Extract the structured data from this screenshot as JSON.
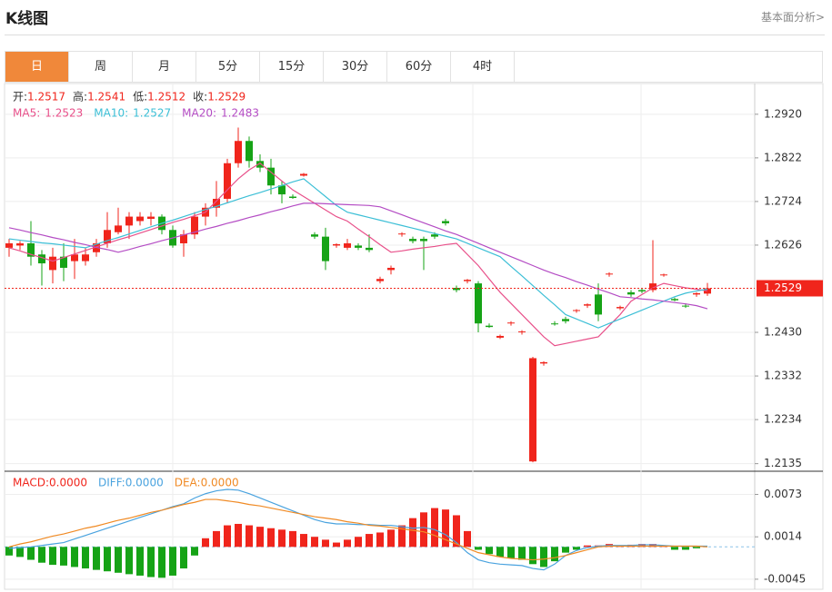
{
  "header": {
    "title": "K线图",
    "link": "基本面分析>"
  },
  "tabs": [
    "日",
    "周",
    "月",
    "5分",
    "15分",
    "30分",
    "60分",
    "4时"
  ],
  "active_tab": 0,
  "chart_data": [
    {
      "type": "candlestick",
      "up_color": "#f0251c",
      "down_color": "#16a316",
      "ohlc_labels": [
        "开:",
        "高:",
        "低:",
        "收:"
      ],
      "open": [
        1.262,
        1.2625,
        1.263,
        1.2605,
        1.257,
        1.26,
        1.259,
        1.259,
        1.261,
        1.263,
        1.2655,
        1.267,
        1.268,
        1.2685,
        1.269,
        1.266,
        1.263,
        1.265,
        1.269,
        1.271,
        1.273,
        1.281,
        1.286,
        1.2815,
        1.28,
        1.276,
        1.2735,
        1.2782,
        1.265,
        1.2645,
        1.2625,
        1.262,
        1.2625,
        1.262,
        1.2545,
        1.257,
        1.265,
        1.264,
        1.264,
        1.265,
        1.268,
        1.253,
        1.2545,
        1.254,
        1.2445,
        1.2418,
        1.245,
        1.243,
        1.214,
        1.236,
        1.245,
        1.246,
        1.2478,
        1.249,
        1.2515,
        1.256,
        1.2484,
        1.252,
        1.2525,
        1.2525,
        1.2558,
        1.2505,
        1.249,
        1.2515,
        1.2517
      ],
      "high": [
        1.264,
        1.2635,
        1.268,
        1.2615,
        1.262,
        1.263,
        1.264,
        1.262,
        1.264,
        1.27,
        1.271,
        1.27,
        1.27,
        1.27,
        1.2695,
        1.267,
        1.266,
        1.27,
        1.272,
        1.277,
        1.282,
        1.289,
        1.287,
        1.283,
        1.282,
        1.277,
        1.274,
        1.2788,
        1.2655,
        1.2665,
        1.263,
        1.264,
        1.263,
        1.265,
        1.2555,
        1.258,
        1.2655,
        1.2645,
        1.2645,
        1.2655,
        1.2685,
        1.2535,
        1.255,
        1.2545,
        1.245,
        1.2425,
        1.2455,
        1.2435,
        1.2375,
        1.2365,
        1.2455,
        1.2465,
        1.2482,
        1.2495,
        1.254,
        1.2565,
        1.249,
        1.2525,
        1.253,
        1.2637,
        1.2562,
        1.2508,
        1.2495,
        1.252,
        1.2541
      ],
      "low": [
        1.26,
        1.2615,
        1.258,
        1.2535,
        1.254,
        1.2545,
        1.255,
        1.258,
        1.26,
        1.262,
        1.265,
        1.264,
        1.267,
        1.267,
        1.265,
        1.262,
        1.26,
        1.264,
        1.267,
        1.269,
        1.272,
        1.28,
        1.28,
        1.279,
        1.274,
        1.272,
        1.273,
        1.278,
        1.264,
        1.257,
        1.262,
        1.2615,
        1.2615,
        1.261,
        1.254,
        1.256,
        1.2645,
        1.263,
        1.257,
        1.264,
        1.267,
        1.252,
        1.254,
        1.243,
        1.244,
        1.2415,
        1.2445,
        1.2425,
        1.2138,
        1.2355,
        1.2445,
        1.245,
        1.2474,
        1.2485,
        1.2455,
        1.2555,
        1.248,
        1.251,
        1.2518,
        1.252,
        1.2555,
        1.25,
        1.2485,
        1.251,
        1.2512
      ],
      "close": [
        1.263,
        1.263,
        1.26,
        1.2585,
        1.26,
        1.2575,
        1.2605,
        1.2605,
        1.263,
        1.266,
        1.267,
        1.269,
        1.269,
        1.269,
        1.266,
        1.2625,
        1.265,
        1.269,
        1.271,
        1.273,
        1.281,
        1.286,
        1.2815,
        1.28,
        1.276,
        1.274,
        1.2732,
        1.2786,
        1.2645,
        1.259,
        1.2628,
        1.263,
        1.262,
        1.2615,
        1.255,
        1.2575,
        1.2652,
        1.2635,
        1.2635,
        1.2645,
        1.2675,
        1.2525,
        1.2548,
        1.245,
        1.2442,
        1.2422,
        1.2452,
        1.2432,
        1.2372,
        1.2363,
        1.2448,
        1.2455,
        1.248,
        1.2493,
        1.247,
        1.2562,
        1.2487,
        1.2515,
        1.2522,
        1.254,
        1.256,
        1.2502,
        1.2488,
        1.2518,
        1.2529
      ],
      "series": [
        {
          "name": "MA5:",
          "color": "#e8508a",
          "values": [
            1.262,
            1.2613,
            1.2605,
            1.2598,
            1.259,
            1.2598,
            1.2606,
            1.2614,
            1.2622,
            1.263,
            1.2638,
            1.2645,
            1.2653,
            1.2661,
            1.2669,
            1.2677,
            1.2684,
            1.2692,
            1.27,
            1.2725,
            1.275,
            1.2775,
            1.2795,
            1.281,
            1.279,
            1.277,
            1.275,
            1.2735,
            1.272,
            1.2705,
            1.269,
            1.268,
            1.2662,
            1.2645,
            1.2627,
            1.261,
            1.2613,
            1.2617,
            1.262,
            1.2623,
            1.2627,
            1.263,
            1.2605,
            1.258,
            1.255,
            1.252,
            1.2495,
            1.247,
            1.2445,
            1.242,
            1.24,
            1.2405,
            1.241,
            1.2415,
            1.242,
            1.2445,
            1.247,
            1.25,
            1.2515,
            1.253,
            1.254,
            1.2535,
            1.253,
            1.2527,
            1.2523
          ]
        },
        {
          "name": "MA10:",
          "color": "#3cbfd6",
          "values": [
            1.264,
            1.2637,
            1.2634,
            1.2631,
            1.2629,
            1.2626,
            1.2623,
            1.262,
            1.2628,
            1.2636,
            1.2643,
            1.2651,
            1.2659,
            1.2667,
            1.2675,
            1.2682,
            1.269,
            1.2698,
            1.2706,
            1.2713,
            1.2721,
            1.2729,
            1.2737,
            1.2744,
            1.2752,
            1.276,
            1.2768,
            1.2775,
            1.2755,
            1.2735,
            1.2715,
            1.27,
            1.2694,
            1.2688,
            1.2682,
            1.2676,
            1.267,
            1.2664,
            1.2658,
            1.2652,
            1.2646,
            1.264,
            1.263,
            1.262,
            1.261,
            1.26,
            1.2578,
            1.2557,
            1.2535,
            1.2513,
            1.2492,
            1.247,
            1.246,
            1.245,
            1.244,
            1.245,
            1.246,
            1.247,
            1.248,
            1.249,
            1.25,
            1.251,
            1.2518,
            1.2523,
            1.2527
          ]
        },
        {
          "name": "MA20:",
          "color": "#b44cc4",
          "values": [
            1.2665,
            1.266,
            1.2654,
            1.2649,
            1.2643,
            1.2638,
            1.2632,
            1.2627,
            1.2621,
            1.2616,
            1.261,
            1.2616,
            1.2623,
            1.2629,
            1.2636,
            1.2642,
            1.2649,
            1.2655,
            1.2662,
            1.2668,
            1.2675,
            1.2681,
            1.2688,
            1.2694,
            1.2701,
            1.2707,
            1.2714,
            1.272,
            1.272,
            1.2719,
            1.2718,
            1.2717,
            1.2716,
            1.2715,
            1.2712,
            1.2703,
            1.2694,
            1.2685,
            1.2676,
            1.2667,
            1.2658,
            1.265,
            1.264,
            1.263,
            1.262,
            1.261,
            1.26,
            1.259,
            1.258,
            1.257,
            1.2561,
            1.2553,
            1.2544,
            1.2536,
            1.2527,
            1.2519,
            1.251,
            1.2508,
            1.2505,
            1.2503,
            1.25,
            1.2497,
            1.2494,
            1.249,
            1.2483
          ]
        }
      ],
      "ylim": [
        1.212,
        1.2989
      ],
      "yticks": [
        {
          "value": 1.292,
          "label": "1.2920"
        },
        1.2822,
        1.2724,
        1.2626,
        {
          "value": 1.243,
          "label": "1.2430"
        },
        1.2332,
        1.2234,
        1.2135
      ]
    },
    {
      "type": "macd",
      "series": [
        {
          "name": "MACD:",
          "color": "#f0251c",
          "down_color": "#16a316",
          "label": "0.0000",
          "values": [
            -0.0012,
            -0.0014,
            -0.0018,
            -0.0022,
            -0.0025,
            -0.0026,
            -0.0028,
            -0.003,
            -0.0032,
            -0.0034,
            -0.0036,
            -0.0038,
            -0.004,
            -0.0042,
            -0.0043,
            -0.004,
            -0.003,
            -0.0012,
            0.0012,
            0.0022,
            0.003,
            0.0032,
            0.003,
            0.0028,
            0.0026,
            0.0024,
            0.0022,
            0.0018,
            0.0014,
            0.001,
            0.0006,
            0.001,
            0.0014,
            0.0018,
            0.002,
            0.0024,
            0.003,
            0.004,
            0.0048,
            0.0054,
            0.0052,
            0.0044,
            0.0022,
            -0.0004,
            -0.001,
            -0.0014,
            -0.0016,
            -0.0018,
            -0.0024,
            -0.0028,
            -0.002,
            -0.0008,
            -0.0004,
            0.0002,
            0.0002,
            0.0004,
            0.0002,
            0.0003,
            0.0004,
            0.0004,
            0.0002,
            -0.0004,
            -0.0004,
            -0.0002,
            0
          ]
        },
        {
          "name": "DIFF:",
          "color": "#4aa3df",
          "label": "0.0000",
          "values": [
            -0.0002,
            -0.0001,
            0,
            0.0002,
            0.0004,
            0.0006,
            0.0011,
            0.0016,
            0.0021,
            0.0026,
            0.0031,
            0.0036,
            0.0041,
            0.0046,
            0.0051,
            0.0056,
            0.006,
            0.0068,
            0.0074,
            0.0078,
            0.008,
            0.0079,
            0.0074,
            0.0068,
            0.0062,
            0.0056,
            0.005,
            0.0044,
            0.0038,
            0.0034,
            0.0032,
            0.0032,
            0.0031,
            0.0031,
            0.003,
            0.003,
            0.0028,
            0.0026,
            0.0027,
            0.0024,
            0.0017,
            0.0006,
            -0.0008,
            -0.0018,
            -0.0022,
            -0.0024,
            -0.0025,
            -0.0026,
            -0.003,
            -0.0032,
            -0.0024,
            -0.0012,
            -0.0005,
            -0.0001,
            0.0001,
            0.0002,
            0.0002,
            0.0002,
            0.0003,
            0.0003,
            0.0002,
            0.0001,
            0.0001,
            0.0001,
            0.0001
          ]
        },
        {
          "name": "DEA:",
          "color": "#f08a24",
          "label": "0.0000",
          "values": [
            0,
            0.0004,
            0.0007,
            0.0011,
            0.0015,
            0.0018,
            0.0022,
            0.0026,
            0.0029,
            0.0033,
            0.0037,
            0.004,
            0.0044,
            0.0048,
            0.0051,
            0.0055,
            0.0059,
            0.0062,
            0.0066,
            0.0066,
            0.0064,
            0.0062,
            0.0059,
            0.0057,
            0.0054,
            0.0051,
            0.0048,
            0.0045,
            0.0042,
            0.004,
            0.0038,
            0.0035,
            0.0033,
            0.003,
            0.0029,
            0.0027,
            0.0025,
            0.0023,
            0.0021,
            0.0016,
            0.001,
            0.0004,
            -0.0002,
            -0.0008,
            -0.0011,
            -0.0014,
            -0.0016,
            -0.0017,
            -0.0018,
            -0.0017,
            -0.0015,
            -0.0012,
            -0.0008,
            -0.0004,
            0,
            0.0001,
            0.0001,
            0.0001,
            0.0001,
            0.0001,
            0.0001,
            0.0001,
            0.0001,
            0.0001,
            0
          ]
        }
      ],
      "ylim": [
        -0.0059,
        0.0104
      ],
      "yticks": [
        0.0073,
        0.0014,
        -0.0045
      ]
    }
  ]
}
